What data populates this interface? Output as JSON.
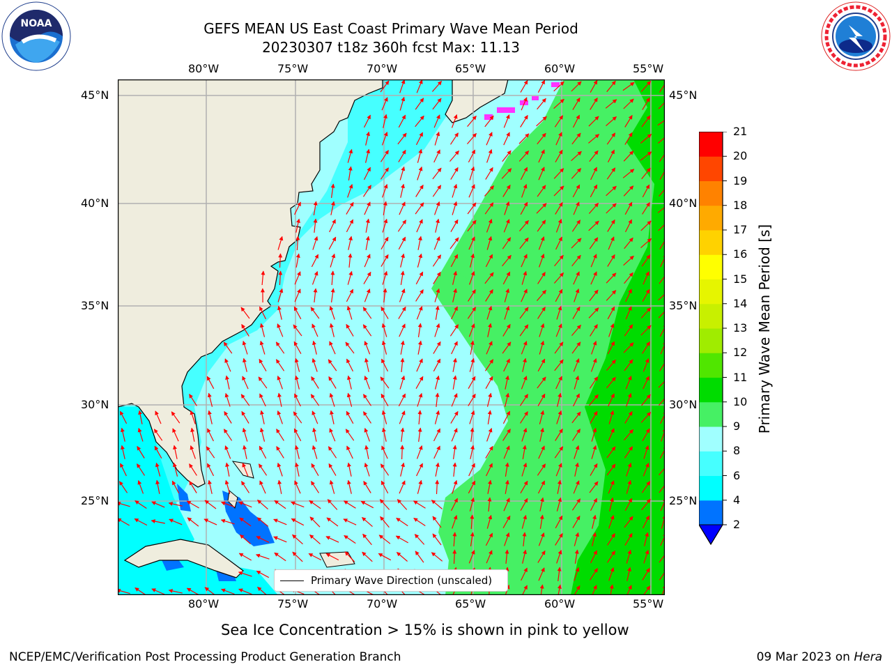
{
  "header": {
    "title_line1": "GEFS MEAN US East Coast Primary Wave Mean Period",
    "title_line2": "20230307 t18z 360h fcst   Max: 11.13"
  },
  "logos": {
    "left": {
      "name": "noaa-logo",
      "text": "NOAA",
      "ring_text": "NATIONAL OCEANIC AND ATMOSPHERIC ADMINISTRATION · U.S. DEPARTMENT OF COMMERCE"
    },
    "right": {
      "name": "nws-logo",
      "ring_text": "NATIONAL WEATHER SERVICE"
    }
  },
  "map": {
    "lon_ticks": [
      "80°W",
      "75°W",
      "70°W",
      "65°W",
      "60°W",
      "55°W"
    ],
    "lat_ticks": [
      "45°N",
      "40°N",
      "35°N",
      "30°N",
      "25°N"
    ],
    "lon_values": [
      -80,
      -75,
      -70,
      -65,
      -60,
      -55
    ],
    "lat_values": [
      45,
      40,
      35,
      30,
      25
    ],
    "extent": {
      "lon": [
        -85,
        -54.7
      ],
      "lat": [
        20.5,
        46
      ]
    },
    "legend_label": "Primary Wave Direction (unscaled)",
    "arrow_color": "#ff0000",
    "land_color": "#efedde",
    "grid": true
  },
  "colorbar": {
    "label": "Primary Wave Mean Period [s]",
    "ticks": [
      "2",
      "4",
      "6",
      "8",
      "9",
      "10",
      "11",
      "12",
      "13",
      "14",
      "15",
      "16",
      "17",
      "18",
      "19",
      "20",
      "21"
    ],
    "colors": [
      "#0073ff",
      "#00ffff",
      "#46ffff",
      "#a0ffff",
      "#46f064",
      "#00dc00",
      "#50e600",
      "#a0ec00",
      "#c8f000",
      "#e6f500",
      "#ffff00",
      "#ffd200",
      "#ffaa00",
      "#ff8200",
      "#ff4600",
      "#ff0000"
    ],
    "extend_color": "#0000ff"
  },
  "footer": {
    "ice_note": "Sea Ice Concentration > 15% is shown in pink to yellow",
    "branch": "NCEP/EMC/Verification Post Processing Product Generation Branch",
    "date": "09 Mar 2023 on ",
    "host": "Hera"
  }
}
